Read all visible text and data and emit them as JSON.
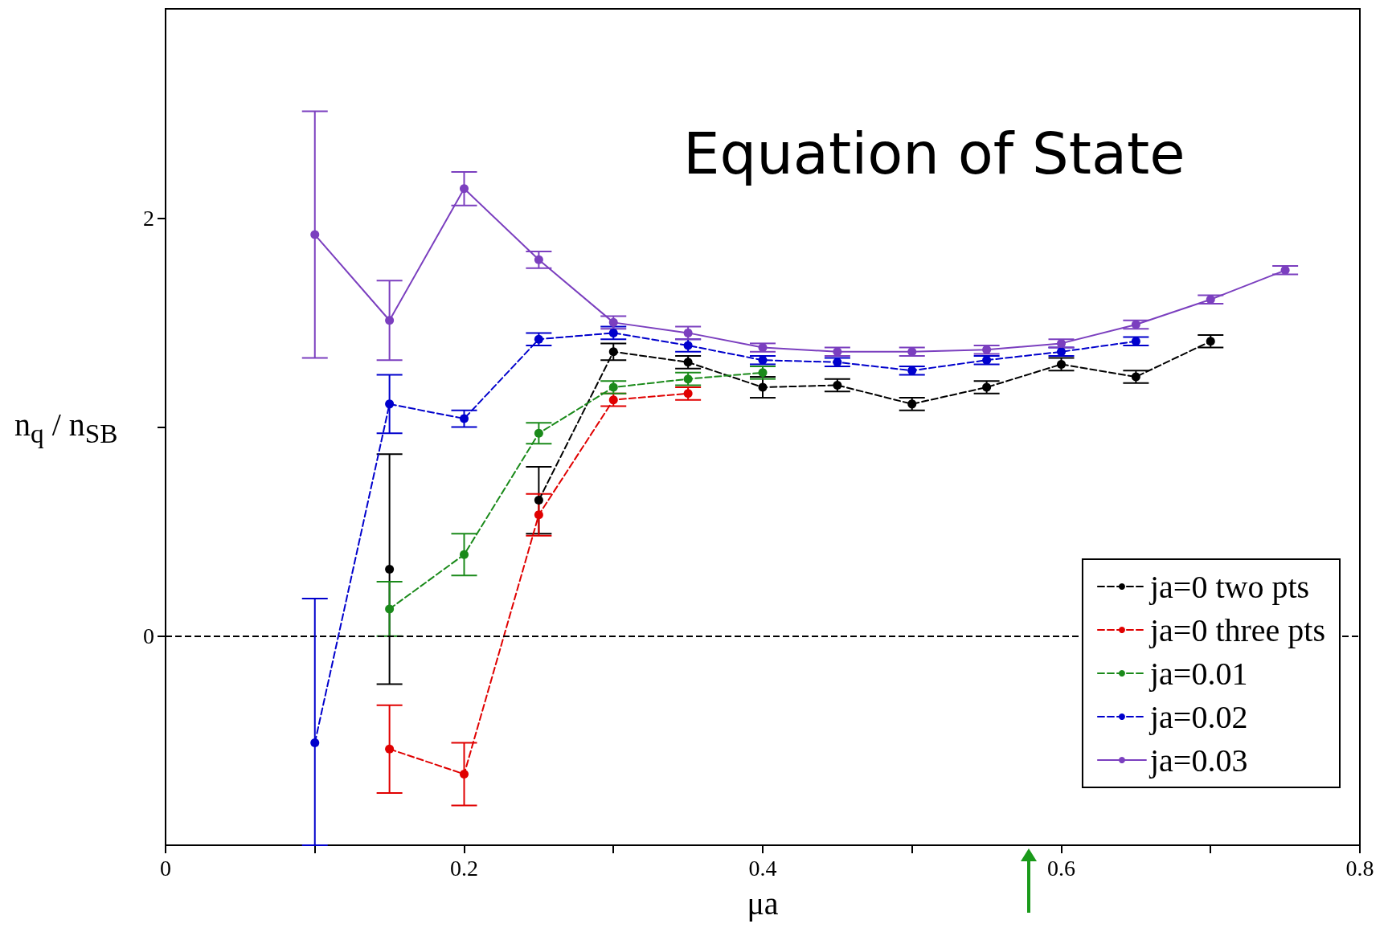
{
  "chart_data": {
    "type": "line",
    "title": "Equation of State",
    "xlabel": "μa",
    "ylabel": "n$_{q}$ / n$_{SB}$",
    "x": [
      0.1,
      0.15,
      0.2,
      0.25,
      0.3,
      0.35,
      0.4,
      0.45,
      0.5,
      0.55,
      0.6,
      0.65,
      0.7,
      0.75
    ],
    "series": [
      {
        "name": "ja=0 two pts",
        "color": "#000000",
        "line_style": "dashed",
        "values": [
          null,
          0.32,
          null,
          0.65,
          1.36,
          1.31,
          1.19,
          1.2,
          1.11,
          1.19,
          1.3,
          1.24,
          1.41,
          null
        ],
        "errors": [
          null,
          0.55,
          null,
          0.16,
          0.04,
          0.03,
          0.05,
          0.03,
          0.03,
          0.03,
          0.03,
          0.03,
          0.03,
          null
        ]
      },
      {
        "name": "ja=0 three pts",
        "color": "#e00000",
        "line_style": "dashed",
        "values": [
          null,
          -0.54,
          -0.66,
          0.58,
          1.13,
          1.16,
          null,
          null,
          null,
          null,
          null,
          null,
          null,
          null
        ],
        "errors": [
          null,
          0.21,
          0.15,
          0.1,
          0.03,
          0.03,
          null,
          null,
          null,
          null,
          null,
          null,
          null,
          null
        ]
      },
      {
        "name": "ja=0.01",
        "color": "#1a8a1a",
        "line_style": "dashed",
        "values": [
          null,
          0.13,
          0.39,
          0.97,
          1.19,
          1.23,
          1.26,
          null,
          null,
          null,
          null,
          null,
          null,
          null
        ],
        "errors": [
          null,
          0.13,
          0.1,
          0.05,
          0.03,
          0.03,
          0.03,
          null,
          null,
          null,
          null,
          null,
          null,
          null
        ]
      },
      {
        "name": "ja=0.02",
        "color": "#0000cc",
        "line_style": "dashed",
        "values": [
          -0.51,
          1.11,
          1.04,
          1.42,
          1.45,
          1.39,
          1.32,
          1.31,
          1.27,
          1.32,
          1.36,
          1.41,
          null,
          null
        ],
        "errors": [
          [
            -1,
            0.18
          ],
          0.14,
          0.04,
          0.03,
          0.03,
          0.03,
          0.02,
          0.02,
          0.02,
          0.02,
          0.02,
          0.02,
          null,
          null
        ]
      },
      {
        "name": "ja=0.03",
        "color": "#7b3fbf",
        "line_style": "solid",
        "values": [
          1.92,
          1.51,
          2.14,
          1.8,
          1.5,
          1.45,
          1.38,
          1.36,
          1.36,
          1.37,
          1.4,
          1.49,
          1.61,
          1.75
        ],
        "errors": [
          0.59,
          0.19,
          0.08,
          0.04,
          0.03,
          0.03,
          0.02,
          0.02,
          0.02,
          0.02,
          0.02,
          0.02,
          0.02,
          0.02
        ]
      }
    ],
    "xlim": [
      0,
      0.8
    ],
    "xticks": [
      0,
      {
        "value": 0.1,
        "label": null
      },
      0.2,
      {
        "value": 0.3,
        "label": null
      },
      0.4,
      {
        "value": 0.5,
        "label": null
      },
      0.6,
      {
        "value": 0.7,
        "label": null
      },
      0.8
    ],
    "ylim": [
      -1,
      3
    ],
    "yticks": [
      0,
      {
        "value": 1,
        "label": null
      },
      2
    ],
    "ref_lines": [
      {
        "axis": "y",
        "value": 0,
        "color": "#000000",
        "line_style": "dashed"
      }
    ],
    "marker": "circle",
    "grid": false,
    "legend": "bottom right"
  }
}
